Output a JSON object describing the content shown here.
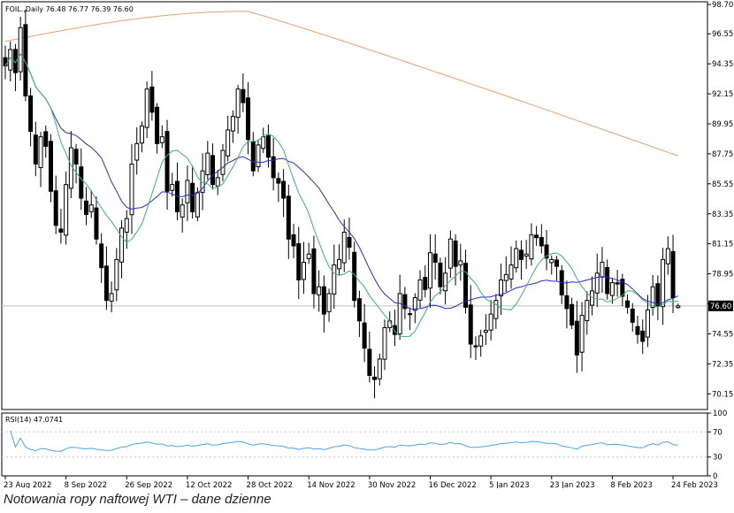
{
  "symbol_header": "FOIL.,Daily  76.48 76.77 76.39 76.60",
  "caption": "Notowania ropy naftowej WTI – dane dzienne",
  "chart_data": [
    {
      "type": "candlestick",
      "title": "FOIL.,Daily",
      "ohlc_last": {
        "open": 76.48,
        "high": 76.77,
        "low": 76.39,
        "close": 76.6
      },
      "current_price_label": "76.60",
      "current_price": 76.6,
      "ylim": [
        69.0,
        98.9
      ],
      "y_ticks": [
        "98.70",
        "96.55",
        "94.35",
        "92.15",
        "89.95",
        "87.75",
        "85.55",
        "83.35",
        "81.15",
        "78.95",
        "76.75",
        "74.55",
        "72.35",
        "70.15"
      ],
      "x_ticks": [
        {
          "label": "23 Aug 2022",
          "index": 0
        },
        {
          "label": "8 Sep 2022",
          "index": 12
        },
        {
          "label": "26 Sep 2022",
          "index": 24
        },
        {
          "label": "12 Oct 2022",
          "index": 36
        },
        {
          "label": "28 Oct 2022",
          "index": 48
        },
        {
          "label": "14 Nov 2022",
          "index": 60
        },
        {
          "label": "30 Nov 2022",
          "index": 72
        },
        {
          "label": "16 Dec 2022",
          "index": 84
        },
        {
          "label": "5 Jan 2023",
          "index": 96
        },
        {
          "label": "23 Jan 2023",
          "index": 108
        },
        {
          "label": "8 Feb 2023",
          "index": 120
        },
        {
          "label": "24 Feb 2023",
          "index": 132
        }
      ],
      "closes": [
        94.2,
        95.4,
        93.7,
        97.0,
        92.0,
        89.4,
        87.0,
        89.0,
        88.3,
        85.0,
        82.5,
        82.0,
        85.5,
        88.2,
        87.0,
        84.5,
        83.3,
        84.0,
        81.5,
        79.4,
        77.0,
        77.5,
        80.0,
        82.3,
        83.0,
        87.0,
        88.5,
        89.8,
        92.5,
        90.8,
        88.5,
        89.0,
        85.0,
        85.5,
        83.5,
        84.0,
        85.8,
        83.5,
        84.9,
        86.5,
        87.8,
        85.5,
        86.0,
        88.0,
        89.5,
        90.5,
        92.5,
        91.5,
        88.8,
        86.5,
        88.4,
        89.0,
        87.5,
        86.0,
        85.6,
        84.5,
        81.5,
        81.0,
        78.5,
        79.8,
        80.4,
        77.5,
        78.0,
        76.0,
        77.5,
        79.6,
        80.0,
        82.0,
        80.9,
        77.0,
        75.5,
        73.5,
        71.5,
        71.2,
        72.7,
        75.0,
        75.5,
        74.5,
        77.5,
        76.4,
        76.0,
        77.2,
        78.5,
        77.8,
        80.5,
        79.8,
        78.0,
        79.0,
        81.5,
        79.5,
        79.9,
        76.5,
        73.8,
        73.6,
        74.4,
        74.8,
        76.0,
        77.0,
        78.5,
        78.9,
        79.6,
        80.8,
        80.0,
        80.4,
        81.8,
        81.6,
        81.0,
        80.1,
        80.0,
        79.5,
        77.4,
        76.4,
        75.2,
        73.0,
        75.9,
        77.0,
        77.7,
        79.0,
        79.8,
        77.5,
        78.3,
        78.2,
        77.3,
        76.5,
        75.4,
        74.5,
        74.0,
        76.3,
        78.0,
        76.6,
        80.0,
        80.8,
        77.2,
        76.6
      ],
      "series": [
        {
          "name": "RSI(14) 47.0741",
          "panel": "oscillator",
          "levels": [
            "100",
            "70",
            "30",
            "0"
          ]
        }
      ]
    }
  ]
}
